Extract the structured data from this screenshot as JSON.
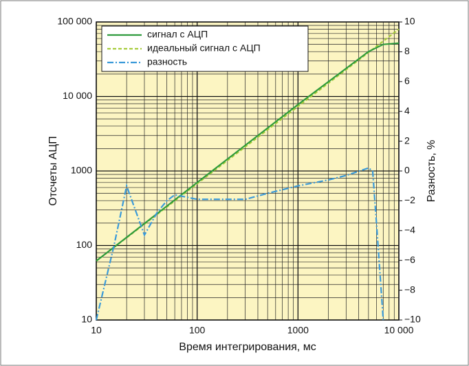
{
  "chart_data": {
    "type": "line",
    "x_label": "Время интегрирования, мс",
    "y_label": "Отсчеты АЦП",
    "y2_label": "Разность, %",
    "xscale": "log",
    "yscale": "log",
    "grid": true,
    "minor_grid": true,
    "legend": "upper left",
    "background": "#fcf5c2",
    "xlim": [
      10,
      10000
    ],
    "xticks": [
      10,
      100,
      1000,
      {
        "value": 10000,
        "label": "10 000"
      }
    ],
    "ylim": [
      10,
      100000
    ],
    "yticks": [
      10,
      100,
      1000,
      {
        "value": 10000,
        "label": "10 000"
      },
      {
        "value": 100000,
        "label": "100 000"
      }
    ],
    "y2lim": [
      -10,
      10
    ],
    "y2ticks": [
      {
        "value": -10,
        "label": "−10"
      },
      {
        "value": -8,
        "label": "−8"
      },
      {
        "value": -6,
        "label": "−6"
      },
      {
        "value": -4,
        "label": "−4"
      },
      {
        "value": -2,
        "label": "−2"
      },
      0,
      2,
      4,
      6,
      8,
      10
    ],
    "series": [
      {
        "name": "сигнал с АЦП",
        "color": "#2e9a3c",
        "dash": "solid",
        "x": [
          10,
          100,
          1000,
          5000,
          7000,
          10000
        ],
        "values": [
          62,
          700,
          7800,
          40000,
          50000,
          52000
        ]
      },
      {
        "name": "идеальный сигнал с АЦП",
        "color": "#a6cc3a",
        "dash": "dashed",
        "x": [
          10,
          10000
        ],
        "values": [
          62,
          80000
        ]
      },
      {
        "name": "разность",
        "color": "#3a9ad9",
        "dash": "dashdot",
        "axis": "y2",
        "x": [
          10,
          15,
          20,
          30,
          40,
          50,
          60,
          100,
          200,
          300,
          500,
          1000,
          2000,
          3000,
          5000,
          5500,
          6000,
          7000
        ],
        "values": [
          -10,
          -5,
          -1,
          -4.3,
          -2.8,
          -2,
          -1.6,
          -1.9,
          -1.9,
          -1.9,
          -1.5,
          -1,
          -0.6,
          -0.3,
          0.2,
          0,
          -3.5,
          -10
        ]
      }
    ]
  }
}
